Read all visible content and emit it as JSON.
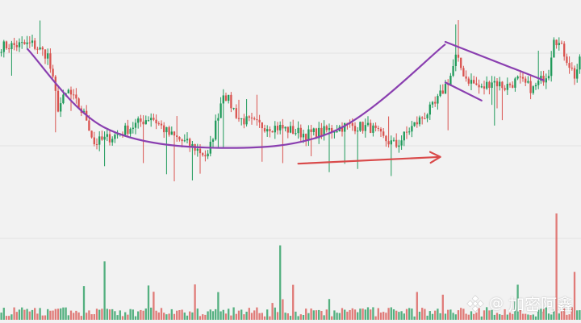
{
  "watermark": {
    "at": "@",
    "name": "加密阿鑫",
    "icon": "binance-logo-icon"
  },
  "colors": {
    "up": "#1f9a5a",
    "down": "#d9534f",
    "cup": "#8a3fb0",
    "arrow": "#d94a4a",
    "background": "#f2f2f2",
    "grid": "#e3e3e3"
  },
  "chart_data": {
    "type": "candlestick",
    "title": "",
    "xlabel": "",
    "ylabel": "",
    "grid": true,
    "ylim": [
      0,
      100
    ],
    "volume_ylim": [
      0,
      100
    ],
    "anchors": [
      [
        0,
        83
      ],
      [
        12,
        84
      ],
      [
        18,
        79
      ],
      [
        22,
        56
      ],
      [
        26,
        63
      ],
      [
        33,
        51
      ],
      [
        36,
        40
      ],
      [
        45,
        44
      ],
      [
        58,
        52
      ],
      [
        65,
        44
      ],
      [
        75,
        38
      ],
      [
        80,
        34
      ],
      [
        86,
        63
      ],
      [
        92,
        51
      ],
      [
        100,
        48
      ],
      [
        108,
        47
      ],
      [
        118,
        44
      ],
      [
        124,
        45
      ],
      [
        134,
        48
      ],
      [
        143,
        47
      ],
      [
        148,
        42
      ],
      [
        153,
        39
      ],
      [
        158,
        46
      ],
      [
        168,
        57
      ],
      [
        174,
        70
      ],
      [
        176,
        78
      ],
      [
        180,
        69
      ],
      [
        186,
        64
      ],
      [
        190,
        68
      ],
      [
        195,
        65
      ],
      [
        200,
        68
      ],
      [
        206,
        64
      ],
      [
        212,
        72
      ],
      [
        214,
        88
      ],
      [
        218,
        80
      ],
      [
        222,
        70
      ],
      [
        224,
        76
      ]
    ],
    "volume_spikes": [
      [
        40,
        55
      ],
      [
        108,
        70
      ],
      [
        200,
        33
      ],
      [
        215,
        100
      ],
      [
        222,
        45
      ]
    ],
    "overlays": {
      "cup_curve": [
        [
          10,
          82
        ],
        [
          40,
          47
        ],
        [
          85,
          38
        ],
        [
          130,
          46
        ],
        [
          172,
          84
        ]
      ],
      "upper_trendline": [
        [
          172,
          85
        ],
        [
          210,
          68
        ]
      ],
      "lower_trendline": [
        [
          172,
          67
        ],
        [
          186,
          59
        ]
      ],
      "trend_arrow": [
        [
          115,
          31
        ],
        [
          170,
          34
        ]
      ]
    }
  }
}
